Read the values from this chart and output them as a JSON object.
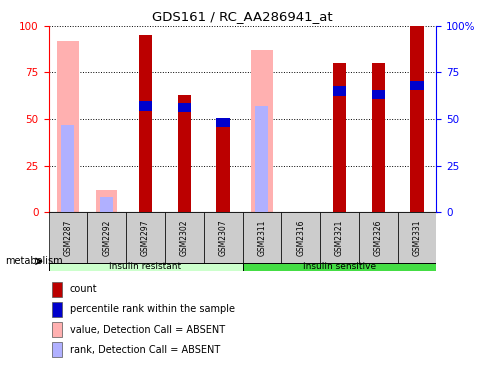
{
  "title": "GDS161 / RC_AA286941_at",
  "samples": [
    "GSM2287",
    "GSM2292",
    "GSM2297",
    "GSM2302",
    "GSM2307",
    "GSM2311",
    "GSM2316",
    "GSM2321",
    "GSM2326",
    "GSM2331"
  ],
  "red_bars": [
    0,
    0,
    95,
    63,
    47,
    0,
    0,
    80,
    80,
    100
  ],
  "blue_bars": [
    0,
    0,
    57,
    56,
    48,
    0,
    0,
    65,
    63,
    68
  ],
  "pink_bars": [
    92,
    12,
    0,
    0,
    0,
    87,
    0,
    0,
    0,
    0
  ],
  "lightblue_bars": [
    47,
    8,
    0,
    0,
    0,
    57,
    0,
    0,
    0,
    0
  ],
  "colors": {
    "red": "#bb0000",
    "blue": "#0000cc",
    "pink": "#ffb0b0",
    "lightblue": "#b0b0ff",
    "ir_bg": "#ccffcc",
    "is_bg": "#44dd44",
    "tick_bg": "#cccccc",
    "white": "#ffffff"
  },
  "ylim": [
    0,
    100
  ],
  "yticks": [
    0,
    25,
    50,
    75,
    100
  ],
  "legend_items": [
    {
      "label": "count",
      "color": "#bb0000"
    },
    {
      "label": "percentile rank within the sample",
      "color": "#0000cc"
    },
    {
      "label": "value, Detection Call = ABSENT",
      "color": "#ffb0b0"
    },
    {
      "label": "rank, Detection Call = ABSENT",
      "color": "#b0b0ff"
    }
  ]
}
